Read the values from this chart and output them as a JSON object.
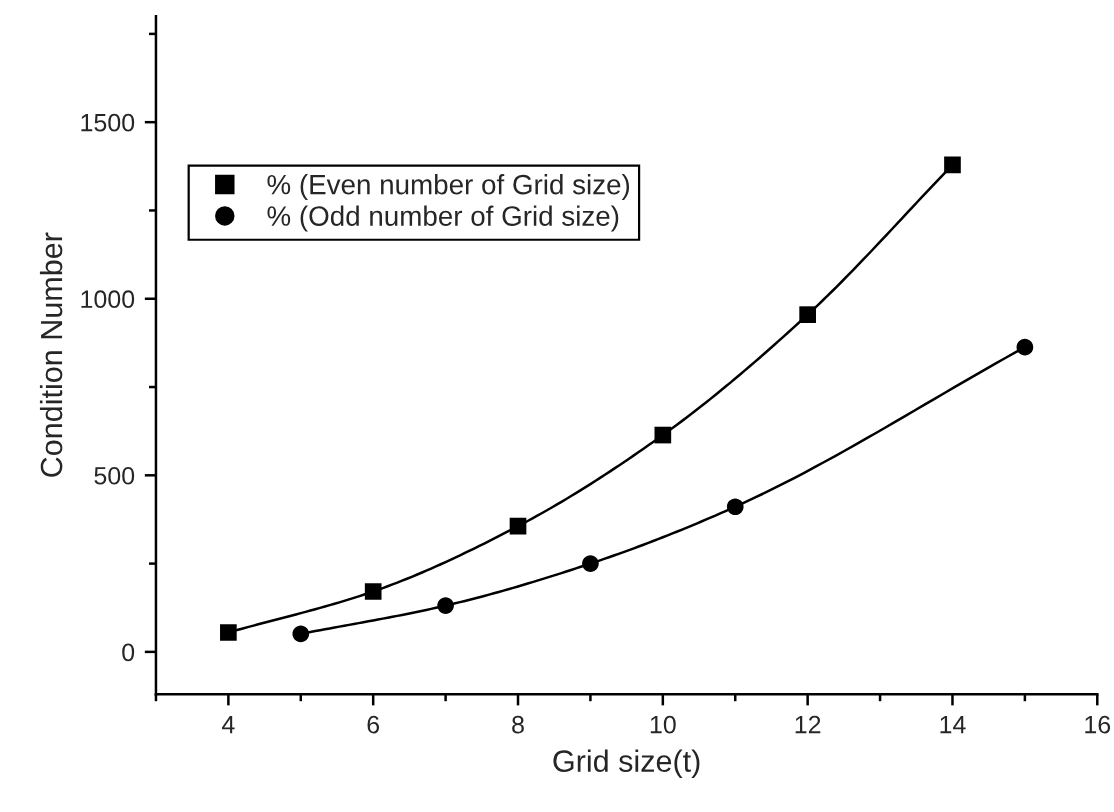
{
  "chart_data": {
    "type": "scatter",
    "xlabel": "Grid size(t)",
    "ylabel": "Condition Number",
    "xlim": [
      3,
      16
    ],
    "xticks": [
      4,
      6,
      8,
      10,
      12,
      14,
      16
    ],
    "ylim": [
      -120,
      1800
    ],
    "yticks": [
      0,
      500,
      1000,
      1500
    ],
    "legend": "top left",
    "grid": false,
    "series": [
      {
        "name": "% (Even number of Grid size)",
        "color": "#000000",
        "marker": "square",
        "x": [
          4,
          6,
          8,
          10,
          12,
          14
        ],
        "values": [
          55,
          171,
          356,
          614,
          955,
          1379
        ]
      },
      {
        "name": "% (Odd number of Grid size)",
        "color": "#000000",
        "marker": "circle",
        "x": [
          5,
          7,
          9,
          11,
          15
        ],
        "values": [
          51,
          131,
          250,
          411,
          863
        ]
      },
      {
        "type": "line",
        "color": "#000000",
        "line_style": "solid",
        "x": [
          4,
          6,
          8,
          10,
          12,
          14
        ],
        "values": [
          55,
          171,
          356,
          614,
          955,
          1379
        ]
      },
      {
        "type": "line",
        "color": "#000000",
        "line_style": "solid",
        "x": [
          5,
          7,
          9,
          11,
          15
        ],
        "values": [
          51,
          131,
          250,
          411,
          863
        ]
      }
    ]
  }
}
